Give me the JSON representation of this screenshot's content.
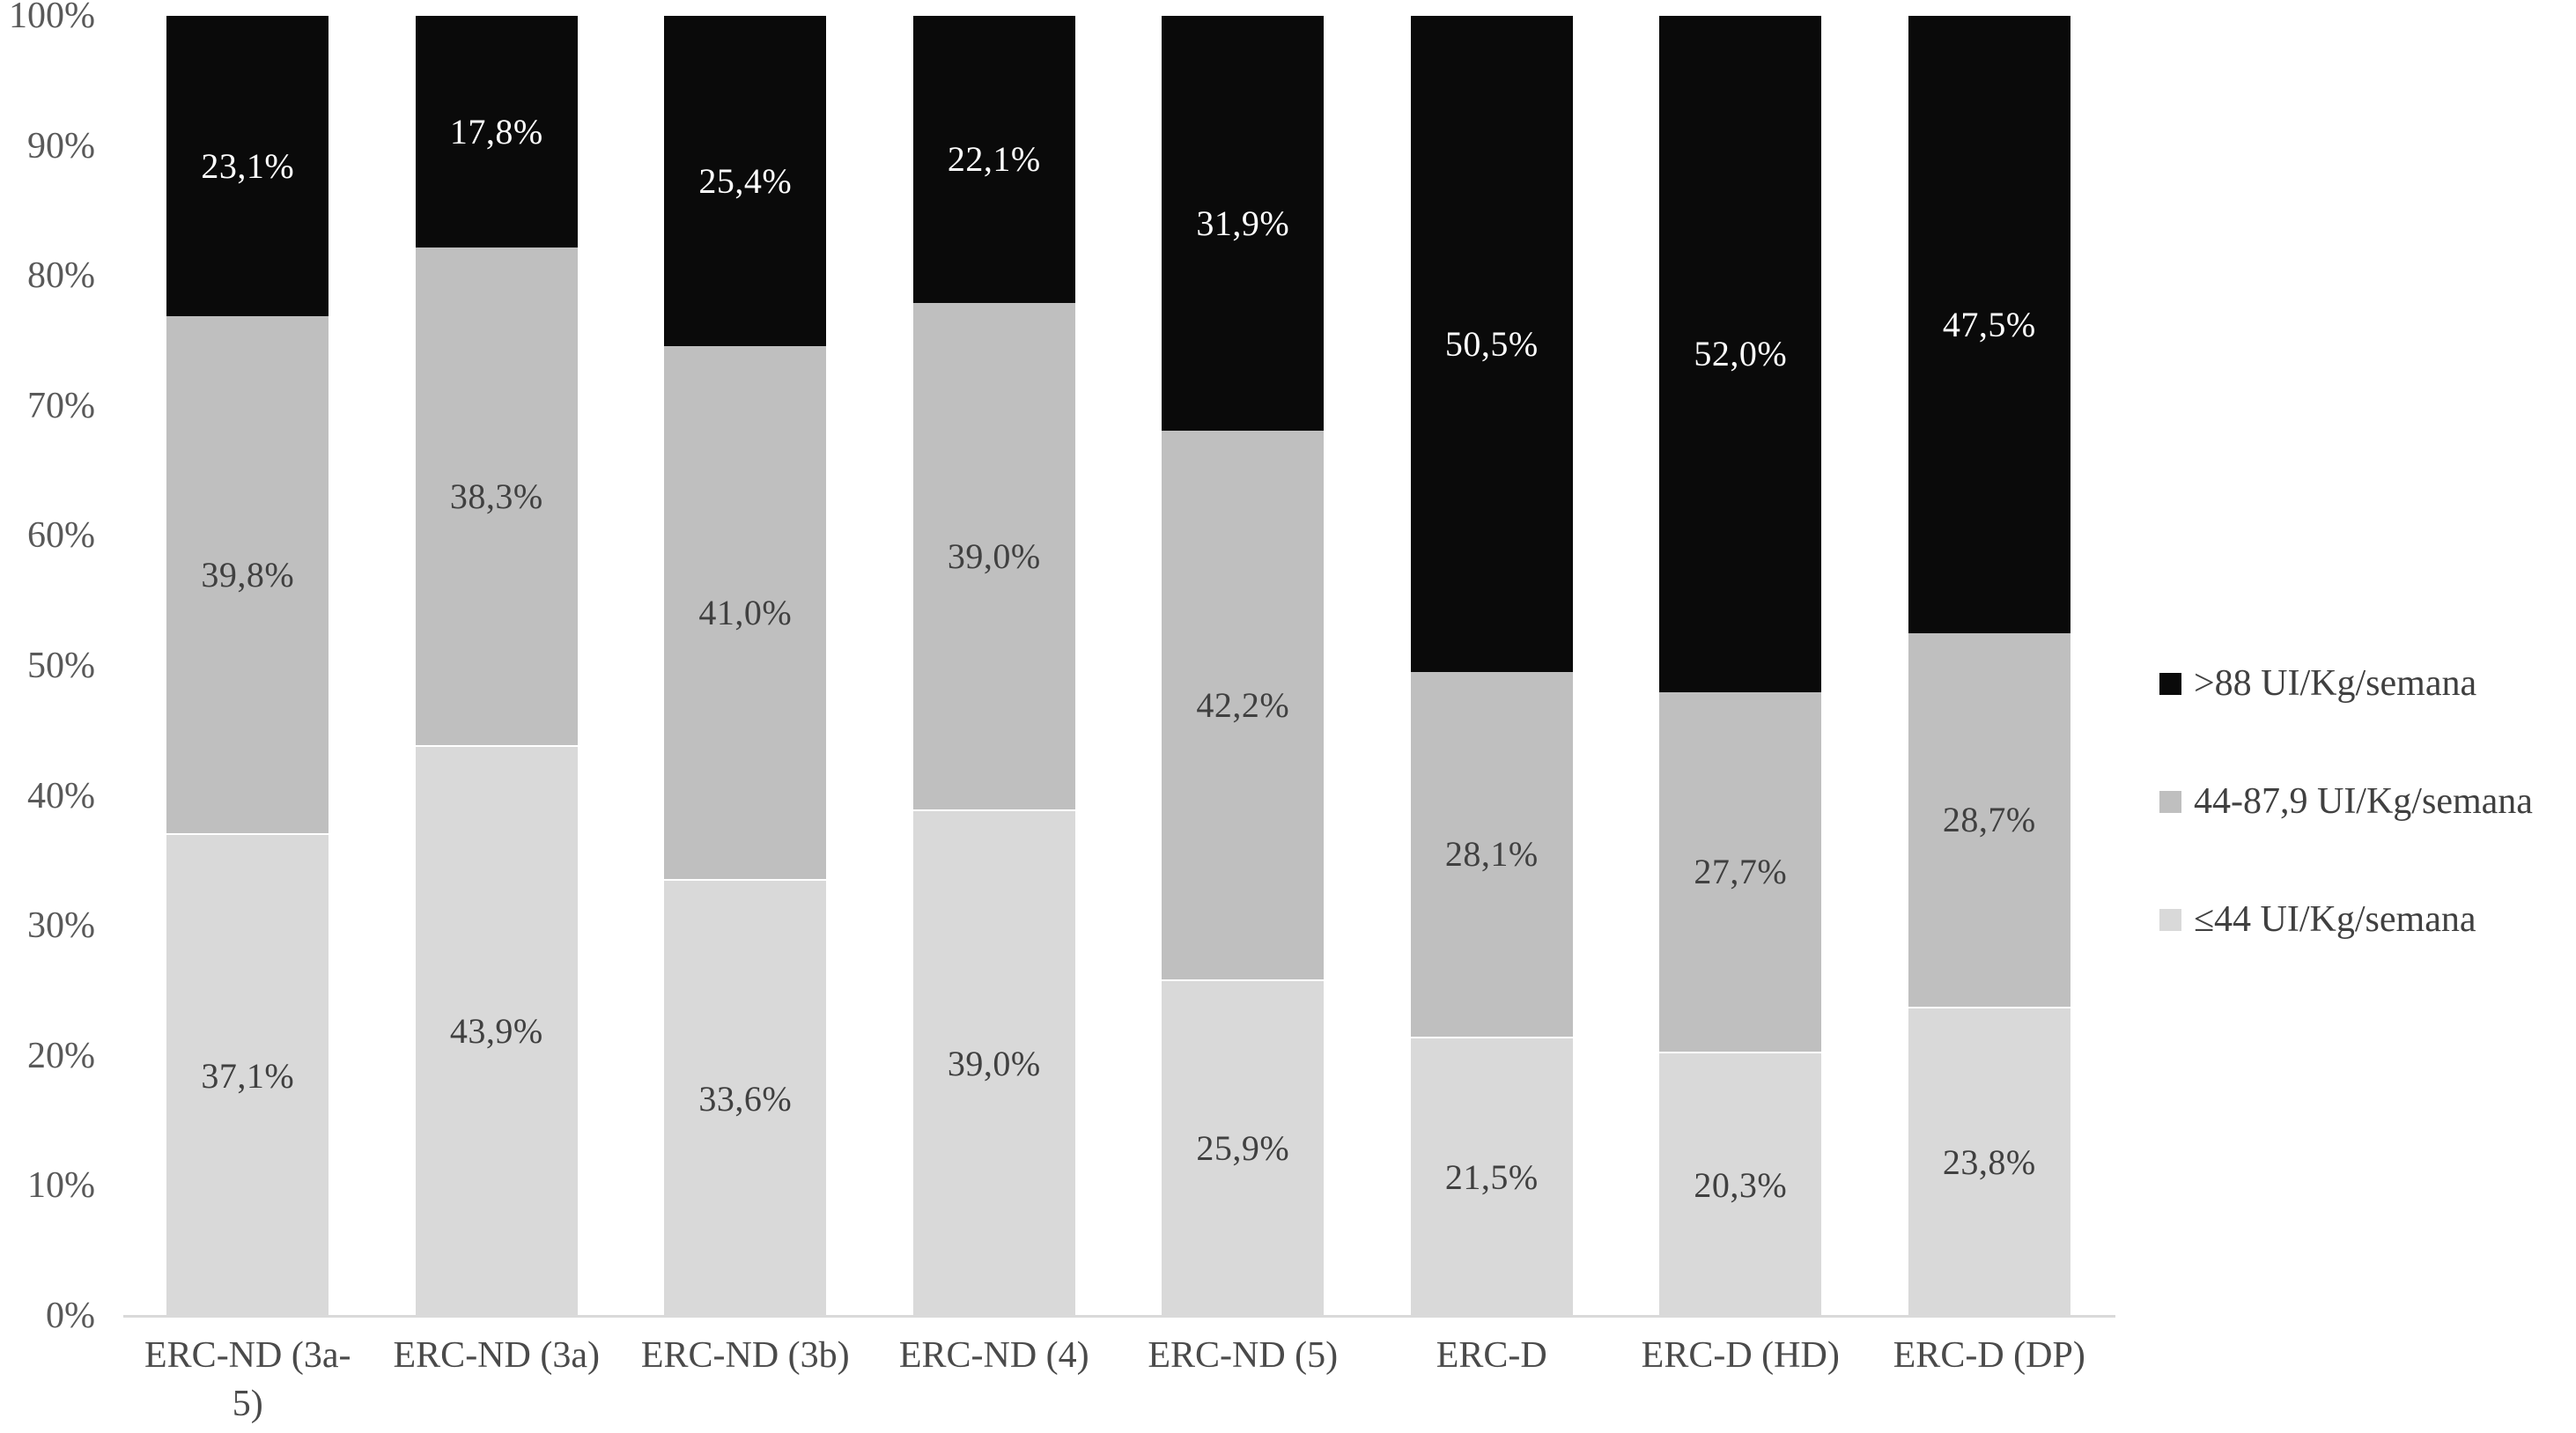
{
  "chart_data": {
    "type": "bar",
    "stacking": "percent",
    "orientation": "vertical",
    "title": "",
    "xlabel": "",
    "ylabel": "",
    "grid": false,
    "legend_position": "right",
    "categories": [
      "ERC-ND (3a-5)",
      "ERC-ND (3a)",
      "ERC-ND (3b)",
      "ERC-ND (4)",
      "ERC-ND (5)",
      "ERC-D",
      "ERC-D (HD)",
      "ERC-D (DP)"
    ],
    "x_tick_labels": [
      "ERC-ND (3a-\n5)",
      "ERC-ND (3a)",
      "ERC-ND (3b)",
      "ERC-ND (4)",
      "ERC-ND (5)",
      "ERC-D",
      "ERC-D (HD)",
      "ERC-D (DP)"
    ],
    "y_axis": {
      "min": 0,
      "max": 100,
      "step": 10,
      "tick_labels": [
        "0%",
        "10%",
        "20%",
        "30%",
        "40%",
        "50%",
        "60%",
        "70%",
        "80%",
        "90%",
        "100%"
      ]
    },
    "series": [
      {
        "name": ">88 UI/Kg/semana",
        "color": "#0a0a0a",
        "label_color": "#ffffff",
        "values": [
          23.1,
          17.8,
          25.4,
          22.1,
          31.9,
          50.5,
          52.0,
          47.5
        ],
        "labels": [
          "23,1%",
          "17,8%",
          "25,4%",
          "22,1%",
          "31,9%",
          "50,5%",
          "52,0%",
          "47,5%"
        ]
      },
      {
        "name": "44-87,9 UI/Kg/semana",
        "color": "#bfbfbf",
        "label_color": "#404040",
        "values": [
          39.8,
          38.3,
          41.0,
          39.0,
          42.2,
          28.1,
          27.7,
          28.7
        ],
        "labels": [
          "39,8%",
          "38,3%",
          "41,0%",
          "39,0%",
          "42,2%",
          "28,1%",
          "27,7%",
          "28,7%"
        ]
      },
      {
        "name": "≤44 UI/Kg/semana",
        "color": "#d9d9d9",
        "label_color": "#404040",
        "values": [
          37.1,
          43.9,
          33.6,
          39.0,
          25.9,
          21.5,
          20.3,
          23.8
        ],
        "labels": [
          "37,1%",
          "43,9%",
          "33,6%",
          "39,0%",
          "25,9%",
          "21,5%",
          "20,3%",
          "23,8%"
        ]
      }
    ],
    "colors": {
      "axis_line": "#d9d9d9",
      "y_tick_text": "#595959",
      "x_tick_text": "#4a4a4a"
    }
  }
}
